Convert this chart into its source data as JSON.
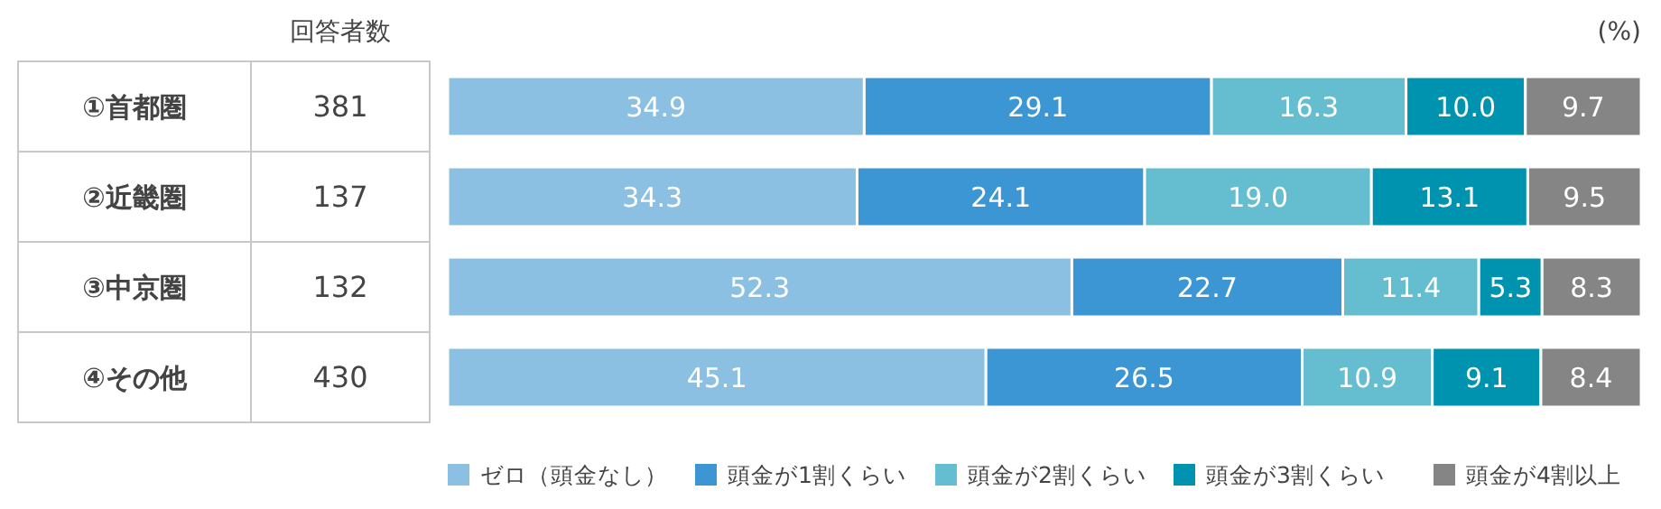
{
  "chart_data": {
    "type": "bar",
    "orientation": "horizontal",
    "stacked": true,
    "xlabel": "(%)",
    "xlim": [
      0,
      100
    ],
    "legend": "bottom",
    "categories": [
      "①首都圏",
      "②近畿圏",
      "③中京圏",
      "④その他"
    ],
    "series": [
      {
        "name": "ゼロ（頭金なし）",
        "color": "#8bc0e3",
        "values": [
          34.9,
          34.3,
          52.3,
          45.1
        ],
        "value_labels": [
          "34.9",
          "34.3",
          "52.3",
          "45.1"
        ]
      },
      {
        "name": "頭金が1割くらい",
        "color": "#3d96d4",
        "values": [
          29.1,
          24.1,
          22.7,
          26.5
        ],
        "value_labels": [
          "29.1",
          "24.1",
          "22.7",
          "26.5"
        ]
      },
      {
        "name": "頭金が2割くらい",
        "color": "#65bdd0",
        "values": [
          16.3,
          19.0,
          11.4,
          10.9
        ],
        "value_labels": [
          "16.3",
          "19.0",
          "11.4",
          "10.9"
        ]
      },
      {
        "name": "頭金が3割くらい",
        "color": "#0093b0",
        "values": [
          10.0,
          13.1,
          5.3,
          9.1
        ],
        "value_labels": [
          "10.0",
          "13.1",
          "5.3",
          "9.1"
        ]
      },
      {
        "name": "頭金が4割以上",
        "color": "#858585",
        "values": [
          9.7,
          9.5,
          8.3,
          8.4
        ],
        "value_labels": [
          "9.7",
          "9.5",
          "8.3",
          "8.4"
        ]
      }
    ],
    "annotations": [
      "回答者数",
      "381",
      "137",
      "132",
      "430"
    ]
  }
}
